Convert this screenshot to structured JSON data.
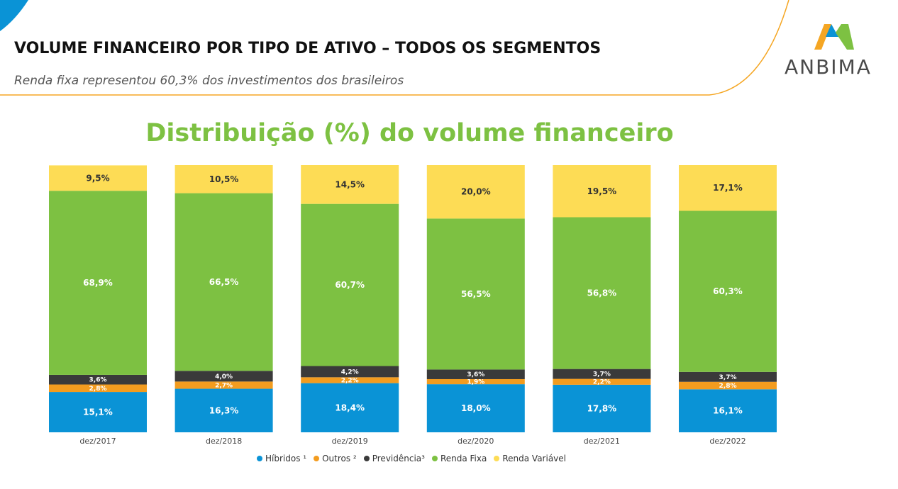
{
  "header": {
    "title": "VOLUME FINANCEIRO POR TIPO DE ATIVO – TODOS OS SEGMENTOS",
    "subtitle": "Renda fixa representou 60,3% dos investimentos dos brasileiros",
    "logo_text": "ANBIMA"
  },
  "colors": {
    "hibridos": "#0a93d6",
    "outros": "#f39c1f",
    "previdencia": "#3a3a3a",
    "renda_fixa": "#7dc142",
    "renda_variavel": "#fddc55",
    "title_green": "#7dc142",
    "accent_orange": "#f5a623",
    "accent_blue": "#0a93d6"
  },
  "chart_data": {
    "type": "bar",
    "stacked": true,
    "title": "Distribuição (%) do volume financeiro",
    "categories": [
      "dez/2017",
      "dez/2018",
      "dez/2019",
      "dez/2020",
      "dez/2021",
      "dez/2022"
    ],
    "ylim": [
      0,
      100
    ],
    "legend_position": "bottom",
    "grid": false,
    "series": [
      {
        "key": "hibridos",
        "name": "Híbridos ¹",
        "values": [
          15.1,
          16.3,
          18.4,
          18.0,
          17.8,
          16.1
        ],
        "labels": [
          "15,1%",
          "16,3%",
          "18,4%",
          "18,0%",
          "17,8%",
          "16,1%"
        ],
        "label_color": "#ffffff"
      },
      {
        "key": "outros",
        "name": "Outros ²",
        "values": [
          2.8,
          2.7,
          2.2,
          1.9,
          2.2,
          2.8
        ],
        "labels": [
          "2,8%",
          "2,7%",
          "2,2%",
          "1,9%",
          "2,2%",
          "2,8%"
        ],
        "label_color": "#ffffff"
      },
      {
        "key": "previdencia",
        "name": "Previdência³",
        "values": [
          3.6,
          4.0,
          4.2,
          3.6,
          3.7,
          3.7
        ],
        "labels": [
          "3,6%",
          "4,0%",
          "4,2%",
          "3,6%",
          "3,7%",
          "3,7%"
        ],
        "label_color": "#ffffff"
      },
      {
        "key": "renda_fixa",
        "name": "Renda Fixa",
        "values": [
          68.9,
          66.5,
          60.7,
          56.5,
          56.8,
          60.3
        ],
        "labels": [
          "68,9%",
          "66,5%",
          "60,7%",
          "56,5%",
          "56,8%",
          "60,3%"
        ],
        "label_color": "#ffffff"
      },
      {
        "key": "renda_variavel",
        "name": "Renda Variável",
        "values": [
          9.5,
          10.5,
          14.5,
          20.0,
          19.5,
          17.1
        ],
        "labels": [
          "9,5%",
          "10,5%",
          "14,5%",
          "20,0%",
          "19,5%",
          "17,1%"
        ],
        "label_color": "#333333"
      }
    ]
  }
}
